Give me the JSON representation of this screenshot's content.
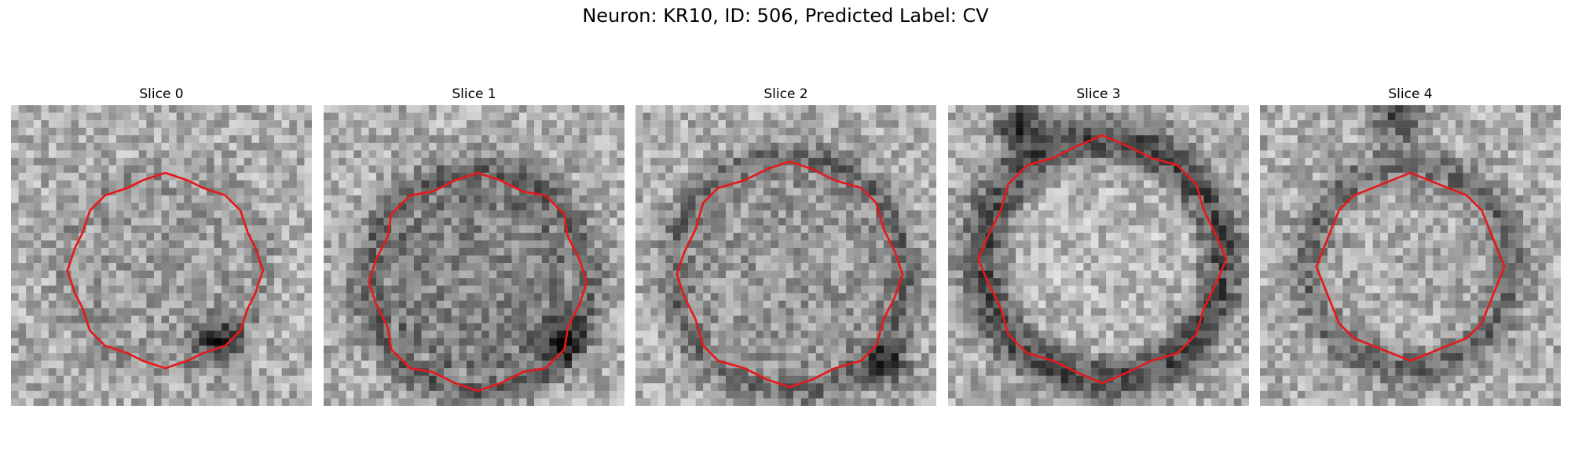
{
  "figure": {
    "title": "Neuron: KR10, ID: 506, Predicted Label: CV"
  },
  "panels": [
    {
      "title": "Slice 0"
    },
    {
      "title": "Slice 1"
    },
    {
      "title": "Slice 2"
    },
    {
      "title": "Slice 3"
    },
    {
      "title": "Slice 4"
    }
  ],
  "colors": {
    "contour": "#e41a1c",
    "colormap": "grayscale"
  }
}
